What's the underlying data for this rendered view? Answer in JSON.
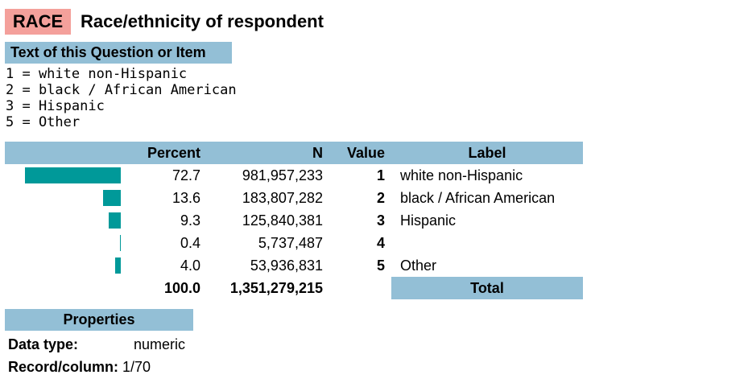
{
  "variable": {
    "name": "RACE",
    "title": "Race/ethnicity of respondent"
  },
  "question": {
    "heading": "Text of this Question or Item",
    "lines": [
      "1 = white non-Hispanic",
      "2 = black / African American",
      "3 = Hispanic",
      "5 = Other"
    ]
  },
  "frequency": {
    "headers": {
      "percent": "Percent",
      "n": "N",
      "value": "Value",
      "label": "Label"
    },
    "bar_color": "#009999",
    "header_color": "#93bfd6",
    "rows": [
      {
        "percent": "72.7",
        "n": "981,957,233",
        "value": "1",
        "label": "white non-Hispanic",
        "fraction": 0.727
      },
      {
        "percent": "13.6",
        "n": "183,807,282",
        "value": "2",
        "label": "black / African American",
        "fraction": 0.136
      },
      {
        "percent": "9.3",
        "n": "125,840,381",
        "value": "3",
        "label": "Hispanic",
        "fraction": 0.093
      },
      {
        "percent": "0.4",
        "n": "5,737,487",
        "value": "4",
        "label": "",
        "fraction": 0.004
      },
      {
        "percent": "4.0",
        "n": "53,936,831",
        "value": "5",
        "label": "Other",
        "fraction": 0.04
      }
    ],
    "total": {
      "percent": "100.0",
      "n": "1,351,279,215",
      "label": "Total"
    }
  },
  "properties": {
    "heading": "Properties",
    "data_type_label": "Data type:",
    "data_type_value": "numeric",
    "record_label": "Record/column:",
    "record_value": "1/70"
  }
}
